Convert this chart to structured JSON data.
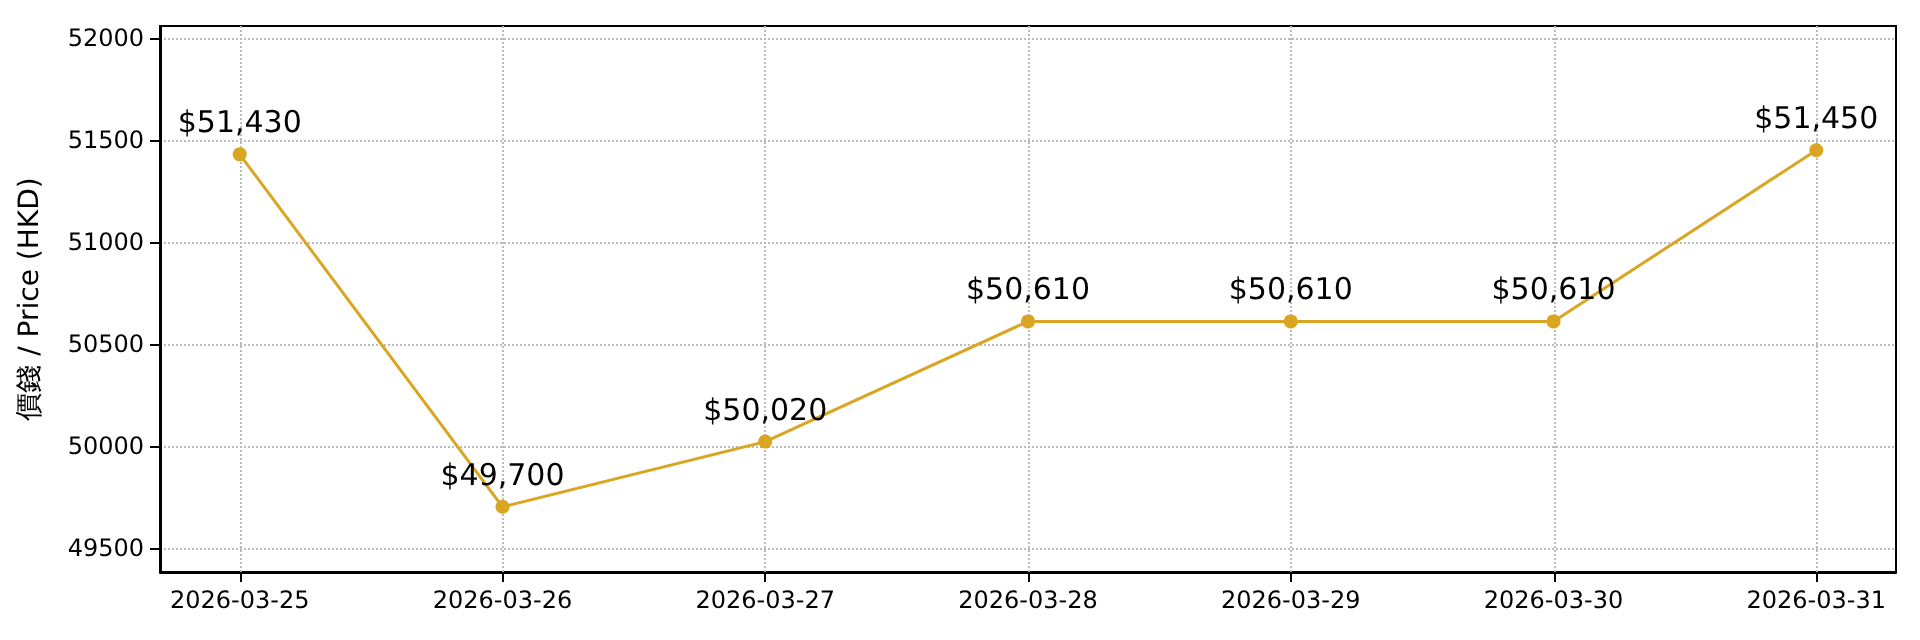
{
  "chart_data": {
    "type": "line",
    "ylabel": "價錢 / Price (HKD)",
    "x": [
      "2026-03-25",
      "2026-03-26",
      "2026-03-27",
      "2026-03-28",
      "2026-03-29",
      "2026-03-30",
      "2026-03-31"
    ],
    "xlim": [
      "2026-03-24T16:43",
      "2026-03-31T07:17"
    ],
    "xticks": [
      "2026-03-25",
      "2026-03-26",
      "2026-03-27",
      "2026-03-28",
      "2026-03-29",
      "2026-03-30",
      "2026-03-31"
    ],
    "series": [
      {
        "color": "#daa520",
        "values": [
          51430,
          49700,
          50020,
          50610,
          50610,
          50610,
          51450
        ],
        "value_labels": [
          "$51,430",
          "$49,700",
          "$50,020",
          "$50,610",
          "$50,610",
          "$50,610",
          "$51,450"
        ]
      }
    ],
    "ylim": [
      49380,
      52060
    ],
    "yticks": [
      49500,
      50000,
      50500,
      51000,
      51500,
      52000
    ],
    "grid": true,
    "marker": "circle",
    "line_style": "solid"
  }
}
